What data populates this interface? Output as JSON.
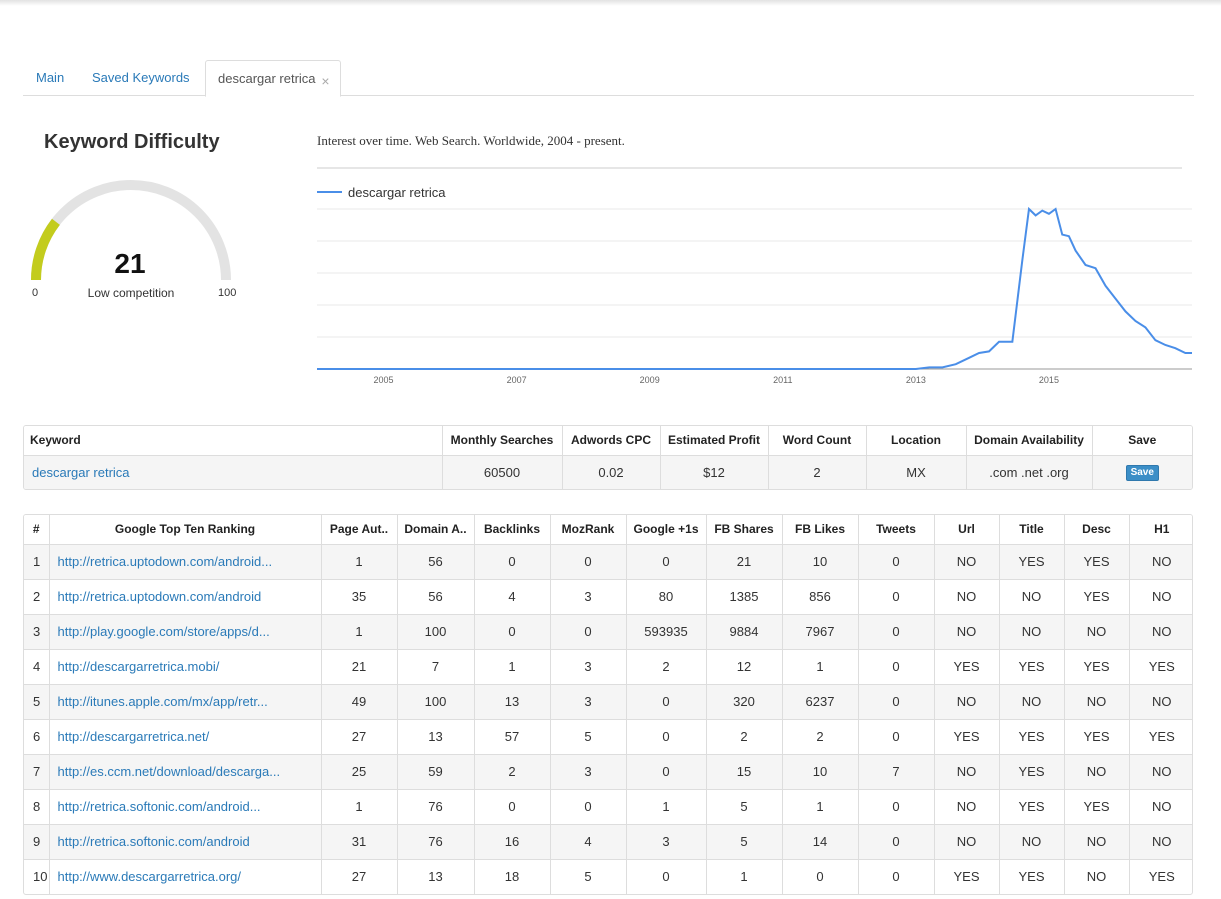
{
  "tabs": [
    {
      "label": "Main"
    },
    {
      "label": "Saved Keywords"
    },
    {
      "label": "descargar retrica",
      "close": "×"
    }
  ],
  "difficulty": {
    "title": "Keyword Difficulty",
    "value": "21",
    "label": "Low competition",
    "min": "0",
    "max": "100",
    "fraction": 0.21,
    "color": "#c3cc1d",
    "track_color": "#e3e3e3"
  },
  "chart_data": {
    "type": "line",
    "title": "Interest over time. Web Search. Worldwide, 2004 - present.",
    "series": [
      {
        "name": "descargar retrica",
        "color": "#4a8ee8",
        "points": [
          [
            2004,
            0
          ],
          [
            2013.0,
            0
          ],
          [
            2013.2,
            1
          ],
          [
            2013.4,
            1
          ],
          [
            2013.6,
            3
          ],
          [
            2013.8,
            7
          ],
          [
            2013.95,
            10
          ],
          [
            2014.1,
            11
          ],
          [
            2014.25,
            17
          ],
          [
            2014.45,
            17
          ],
          [
            2014.6,
            68
          ],
          [
            2014.7,
            100
          ],
          [
            2014.8,
            96
          ],
          [
            2014.9,
            99
          ],
          [
            2015.0,
            97
          ],
          [
            2015.1,
            100
          ],
          [
            2015.2,
            84
          ],
          [
            2015.3,
            83
          ],
          [
            2015.4,
            74
          ],
          [
            2015.55,
            65
          ],
          [
            2015.7,
            63
          ],
          [
            2015.85,
            52
          ],
          [
            2016.0,
            44
          ],
          [
            2016.15,
            36
          ],
          [
            2016.3,
            30
          ],
          [
            2016.45,
            26
          ],
          [
            2016.6,
            18
          ],
          [
            2016.75,
            15
          ],
          [
            2016.9,
            13
          ],
          [
            2017.05,
            10
          ],
          [
            2017.15,
            10
          ]
        ]
      }
    ],
    "xticks": [
      "2005",
      "2007",
      "2009",
      "2011",
      "2013",
      "2015"
    ],
    "xtick_values": [
      2005,
      2007,
      2009,
      2011,
      2013,
      2015
    ],
    "xlim": [
      2004,
      2017.15
    ],
    "ylim": [
      0,
      100
    ],
    "grid": true,
    "legend": "top-left"
  },
  "keyword_table": {
    "headers": [
      "Keyword",
      "Monthly Searches",
      "Adwords CPC",
      "Estimated Profit",
      "Word Count",
      "Location",
      "Domain Availability",
      "Save"
    ],
    "row": {
      "keyword": "descargar retrica",
      "monthly_searches": "60500",
      "cpc": "0.02",
      "profit": "$12",
      "word_count": "2",
      "location": "MX",
      "domains": ".com .net .org",
      "save_label": "Save"
    }
  },
  "ranking_table": {
    "headers": [
      "#",
      "Google Top Ten Ranking",
      "Page Aut..",
      "Domain A..",
      "Backlinks",
      "MozRank",
      "Google +1s",
      "FB Shares",
      "FB Likes",
      "Tweets",
      "Url",
      "Title",
      "Desc",
      "H1"
    ],
    "rows": [
      [
        "1",
        "http://retrica.uptodown.com/android...",
        "1",
        "56",
        "0",
        "0",
        "0",
        "21",
        "10",
        "0",
        "NO",
        "YES",
        "YES",
        "NO"
      ],
      [
        "2",
        "http://retrica.uptodown.com/android",
        "35",
        "56",
        "4",
        "3",
        "80",
        "1385",
        "856",
        "0",
        "NO",
        "NO",
        "YES",
        "NO"
      ],
      [
        "3",
        "http://play.google.com/store/apps/d...",
        "1",
        "100",
        "0",
        "0",
        "593935",
        "9884",
        "7967",
        "0",
        "NO",
        "NO",
        "NO",
        "NO"
      ],
      [
        "4",
        "http://descargarretrica.mobi/",
        "21",
        "7",
        "1",
        "3",
        "2",
        "12",
        "1",
        "0",
        "YES",
        "YES",
        "YES",
        "YES"
      ],
      [
        "5",
        "http://itunes.apple.com/mx/app/retr...",
        "49",
        "100",
        "13",
        "3",
        "0",
        "320",
        "6237",
        "0",
        "NO",
        "NO",
        "NO",
        "NO"
      ],
      [
        "6",
        "http://descargarretrica.net/",
        "27",
        "13",
        "57",
        "5",
        "0",
        "2",
        "2",
        "0",
        "YES",
        "YES",
        "YES",
        "YES"
      ],
      [
        "7",
        "http://es.ccm.net/download/descarga...",
        "25",
        "59",
        "2",
        "3",
        "0",
        "15",
        "10",
        "7",
        "NO",
        "YES",
        "NO",
        "NO"
      ],
      [
        "8",
        "http://retrica.softonic.com/android...",
        "1",
        "76",
        "0",
        "0",
        "1",
        "5",
        "1",
        "0",
        "NO",
        "YES",
        "YES",
        "NO"
      ],
      [
        "9",
        "http://retrica.softonic.com/android",
        "31",
        "76",
        "16",
        "4",
        "3",
        "5",
        "14",
        "0",
        "NO",
        "NO",
        "NO",
        "NO"
      ],
      [
        "10",
        "http://www.descargarretrica.org/",
        "27",
        "13",
        "18",
        "5",
        "0",
        "1",
        "0",
        "0",
        "YES",
        "YES",
        "NO",
        "YES"
      ]
    ]
  }
}
